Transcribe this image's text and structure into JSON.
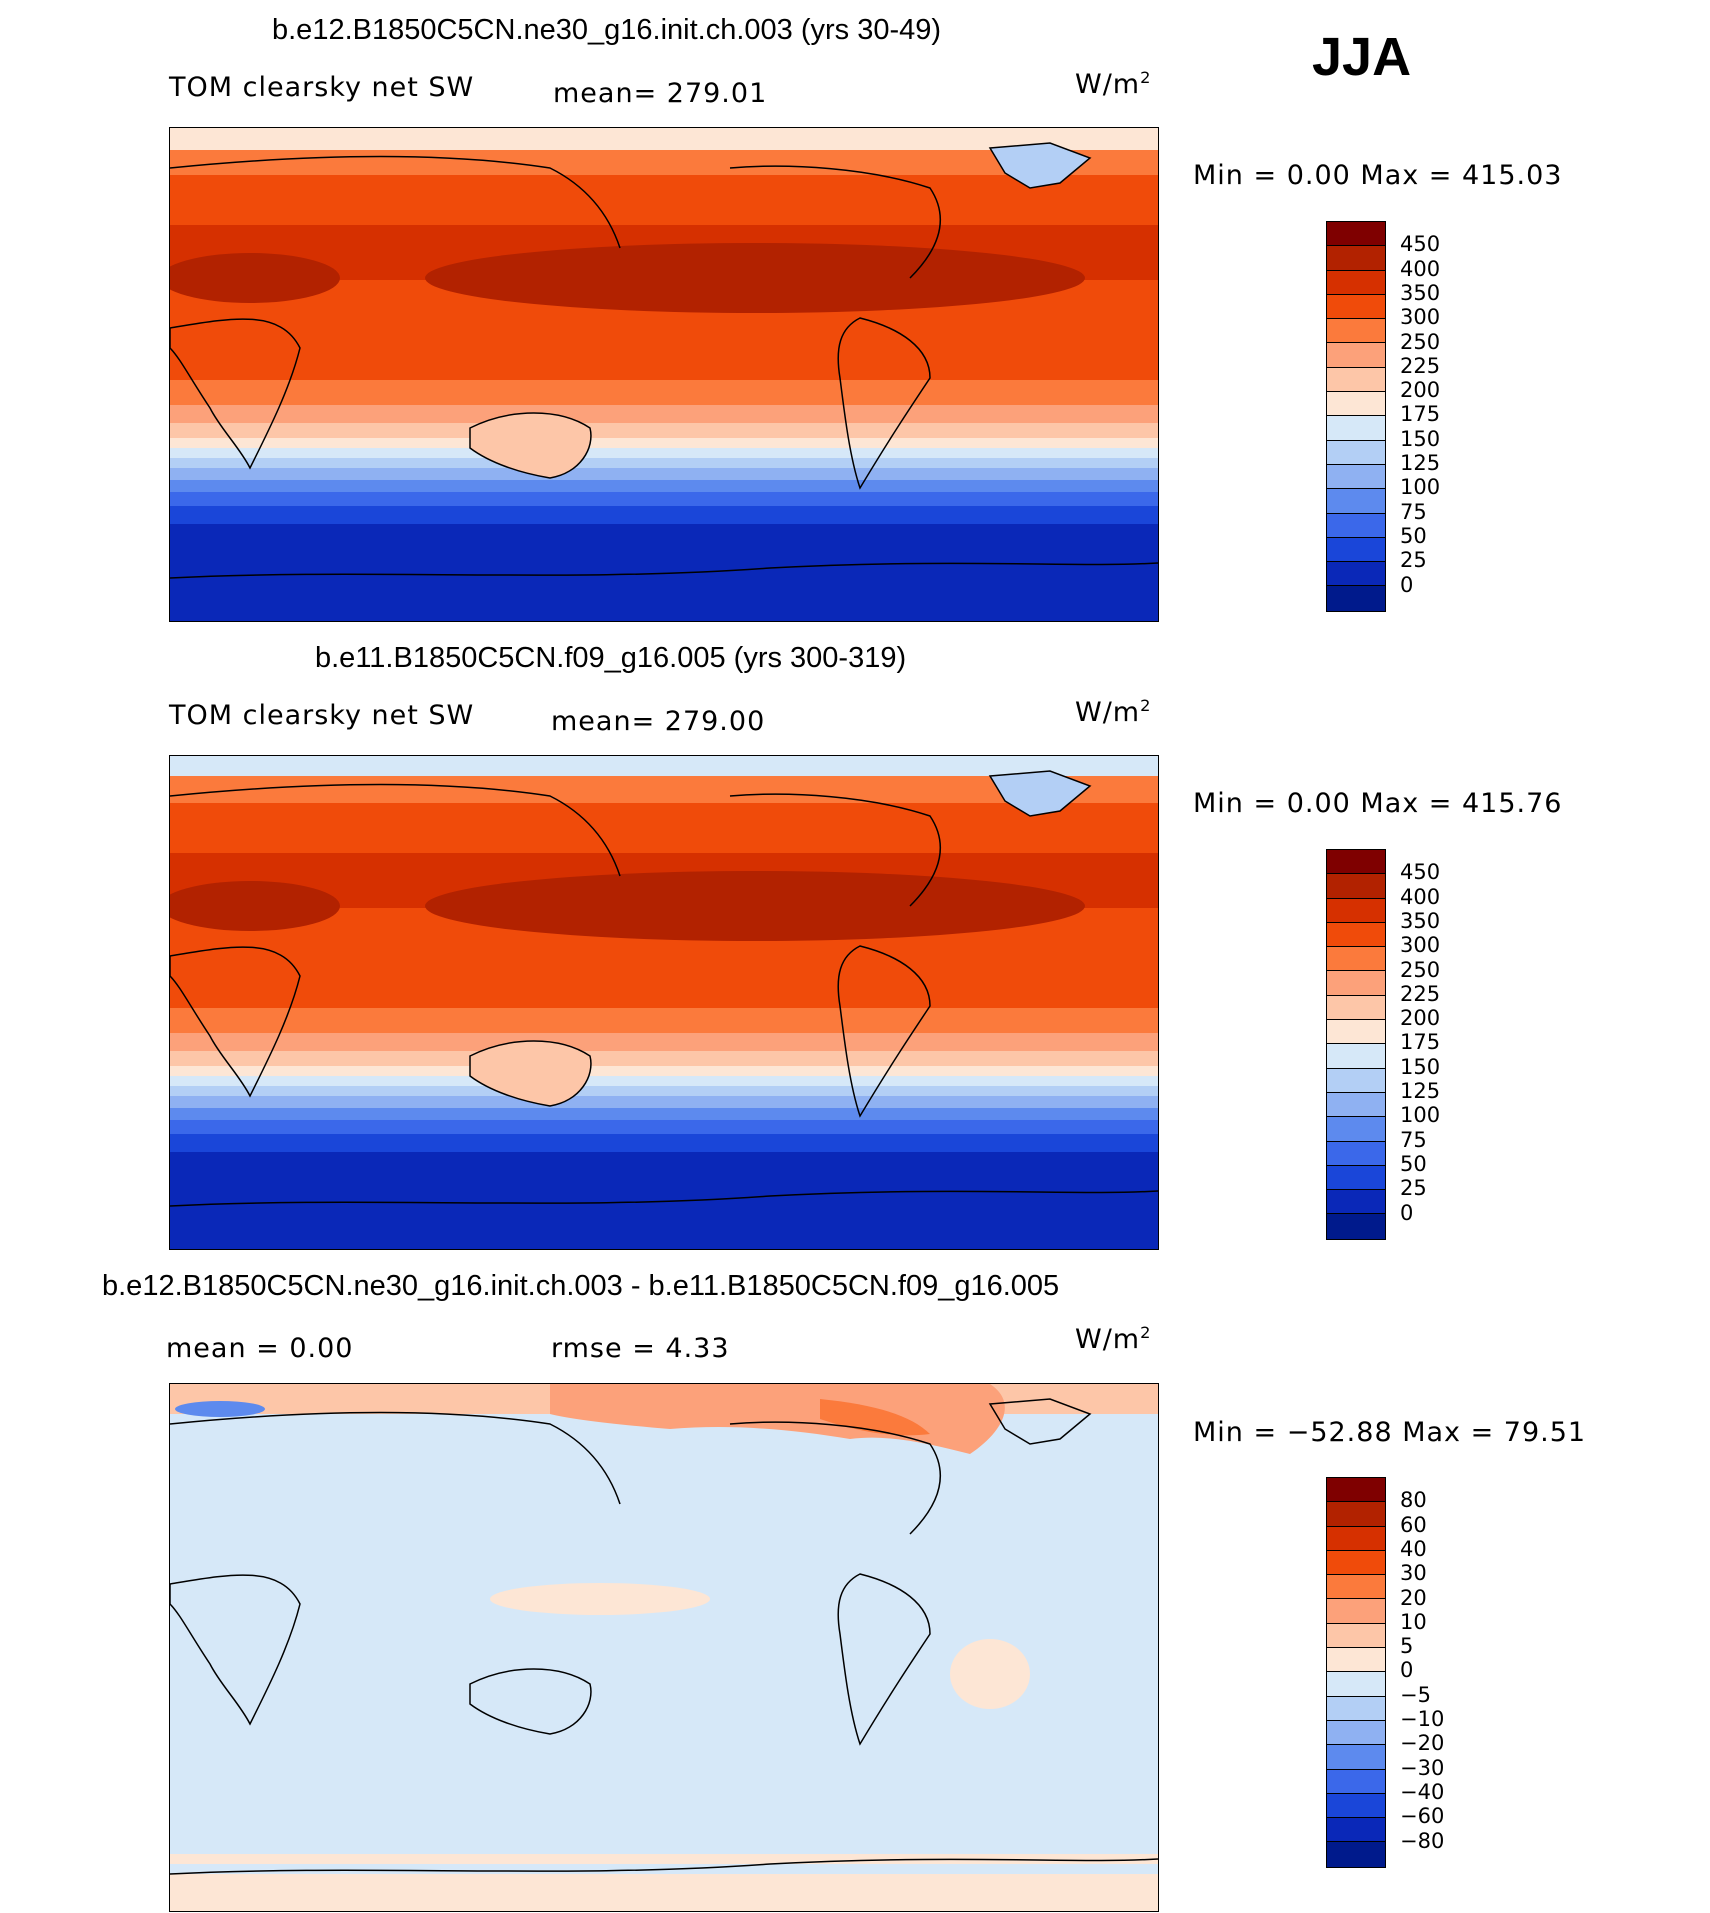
{
  "season": "JJA",
  "panels": [
    {
      "title": "b.e12.B1850C5CN.ne30_g16.init.ch.003 (yrs 30-49)",
      "variable": "TOM clearsky net SW",
      "stat": "mean=  279.01",
      "units_base": "W/m",
      "units_exp": "2",
      "minmax": "Min =     0.00  Max  =  415.03",
      "levels": [
        "450",
        "400",
        "350",
        "300",
        "250",
        "225",
        "200",
        "175",
        "150",
        "125",
        "100",
        "75",
        "50",
        "25",
        "0"
      ],
      "colors": [
        "#7f0000",
        "#b22200",
        "#d63000",
        "#f04b0a",
        "#fb7a3c",
        "#fca17a",
        "#fdc6a8",
        "#fde6d5",
        "#d6e8f8",
        "#b3cff5",
        "#8fb1f2",
        "#5d8aee",
        "#3b68ea",
        "#1a46d9",
        "#0a28b8",
        "#001a8c"
      ]
    },
    {
      "title": "b.e11.B1850C5CN.f09_g16.005 (yrs 300-319)",
      "variable": "TOM clearsky net SW",
      "stat": "mean=  279.00",
      "units_base": "W/m",
      "units_exp": "2",
      "minmax": "Min =     0.00  Max  =  415.76",
      "levels": [
        "450",
        "400",
        "350",
        "300",
        "250",
        "225",
        "200",
        "175",
        "150",
        "125",
        "100",
        "75",
        "50",
        "25",
        "0"
      ],
      "colors": [
        "#7f0000",
        "#b22200",
        "#d63000",
        "#f04b0a",
        "#fb7a3c",
        "#fca17a",
        "#fdc6a8",
        "#fde6d5",
        "#d6e8f8",
        "#b3cff5",
        "#8fb1f2",
        "#5d8aee",
        "#3b68ea",
        "#1a46d9",
        "#0a28b8",
        "#001a8c"
      ]
    },
    {
      "title": "b.e12.B1850C5CN.ne30_g16.init.ch.003 - b.e11.B1850C5CN.f09_g16.005",
      "stat_left": "mean =     0.00",
      "stat_right": "rmse =     4.33",
      "units_base": "W/m",
      "units_exp": "2",
      "minmax": "Min = −52.88  Max  =    79.51",
      "levels": [
        "80",
        "60",
        "40",
        "30",
        "20",
        "10",
        "5",
        "0",
        "−5",
        "−10",
        "−20",
        "−30",
        "−40",
        "−60",
        "−80"
      ],
      "colors": [
        "#7f0000",
        "#b22200",
        "#d63000",
        "#f04b0a",
        "#fb7a3c",
        "#fca17a",
        "#fdc6a8",
        "#fde6d5",
        "#d6e8f8",
        "#b3cff5",
        "#8fb1f2",
        "#5d8aee",
        "#3b68ea",
        "#1a46d9",
        "#0a28b8",
        "#001a8c"
      ]
    }
  ]
}
